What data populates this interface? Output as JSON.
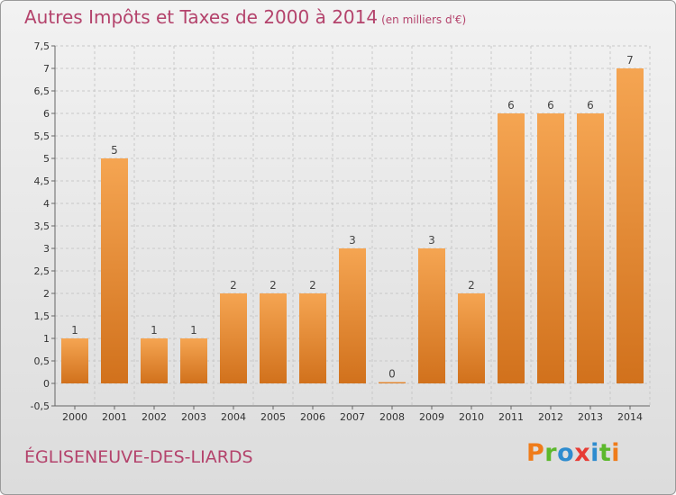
{
  "header": {
    "title": "Autres Impôts et Taxes de 2000 à 2014",
    "unit": "(en milliers d'€)"
  },
  "footer": {
    "commune": "ÉGLISENEUVE-DES-LIARDS",
    "logo": "Proxiti"
  },
  "colors": {
    "title": "#b4436c",
    "bar_light": "#f5a552",
    "bar_dark": "#d1711c",
    "logo_letters": [
      "#ef7c1a",
      "#5cb82c",
      "#2e8ccf",
      "#e73c35",
      "#2e8ccf",
      "#5cb82c",
      "#ef7c1a"
    ]
  },
  "chart_data": {
    "type": "bar",
    "title": "Autres Impôts et Taxes de 2000 à 2014",
    "subtitle": "(en milliers d'€)",
    "xlabel": "",
    "ylabel": "",
    "categories": [
      "2000",
      "2001",
      "2002",
      "2003",
      "2004",
      "2005",
      "2006",
      "2007",
      "2008",
      "2009",
      "2010",
      "2011",
      "2012",
      "2013",
      "2014"
    ],
    "values": [
      1,
      5,
      1,
      1,
      2,
      2,
      2,
      3,
      0,
      3,
      2,
      6,
      6,
      6,
      7
    ],
    "data_labels": [
      "1",
      "5",
      "1",
      "1",
      "2",
      "2",
      "2",
      "3",
      "0",
      "3",
      "2",
      "6",
      "6",
      "6",
      "7"
    ],
    "ylim": [
      -0.5,
      7.5
    ],
    "yticks": [
      -0.5,
      0,
      0.5,
      1,
      1.5,
      2,
      2.5,
      3,
      3.5,
      4,
      4.5,
      5,
      5.5,
      6,
      6.5,
      7,
      7.5
    ],
    "ytick_labels": [
      "-0,5",
      "0",
      "0,5",
      "1",
      "1,5",
      "2",
      "2,5",
      "3",
      "3,5",
      "4",
      "4,5",
      "5",
      "5,5",
      "6",
      "6,5",
      "7",
      "7,5"
    ],
    "grid": true
  }
}
